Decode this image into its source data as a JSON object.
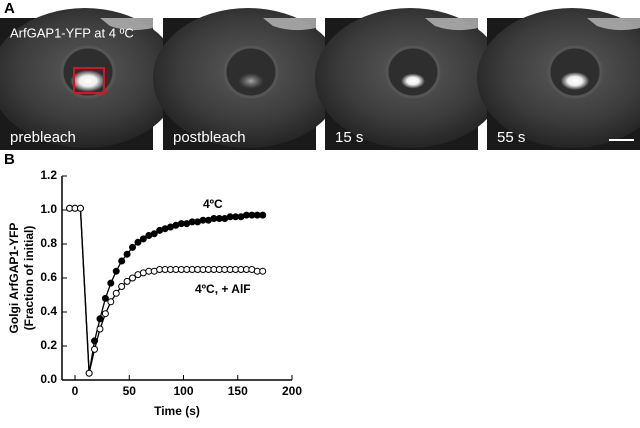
{
  "panel_a": {
    "label": "A",
    "title": "ArfGAP1-YFP at 4 ºC",
    "captions": [
      "prebleach",
      "postbleach",
      "15 s",
      "55 s"
    ]
  },
  "chart_data": {
    "type": "line",
    "panel_label": "B",
    "x_label": "Time (s)",
    "y_label": [
      "Golgi ArfGAP1-YFP",
      "(Fraction of initial)"
    ],
    "x": [
      -5,
      0,
      5,
      13,
      18,
      23,
      28,
      33,
      38,
      43,
      48,
      53,
      58,
      63,
      68,
      73,
      78,
      83,
      88,
      93,
      98,
      103,
      108,
      113,
      118,
      123,
      128,
      133,
      138,
      143,
      148,
      153,
      158,
      163,
      168,
      173
    ],
    "series": [
      {
        "name": "4ºC",
        "color": "#000000",
        "marker_fill": "#000000",
        "values": [
          1.01,
          1.01,
          1.01,
          0.04,
          0.23,
          0.36,
          0.48,
          0.57,
          0.64,
          0.7,
          0.74,
          0.78,
          0.81,
          0.83,
          0.85,
          0.86,
          0.88,
          0.89,
          0.9,
          0.91,
          0.92,
          0.92,
          0.93,
          0.93,
          0.94,
          0.94,
          0.95,
          0.95,
          0.95,
          0.96,
          0.96,
          0.96,
          0.97,
          0.97,
          0.97,
          0.97
        ]
      },
      {
        "name": "4ºC, + AlF",
        "color": "#000000",
        "marker_fill": "#ffffff",
        "values": [
          1.01,
          1.01,
          1.01,
          0.04,
          0.18,
          0.3,
          0.39,
          0.46,
          0.51,
          0.55,
          0.58,
          0.6,
          0.62,
          0.63,
          0.64,
          0.64,
          0.65,
          0.65,
          0.65,
          0.65,
          0.65,
          0.65,
          0.65,
          0.65,
          0.65,
          0.65,
          0.65,
          0.65,
          0.65,
          0.65,
          0.65,
          0.65,
          0.65,
          0.65,
          0.64,
          0.64
        ]
      }
    ],
    "xlim": [
      -12,
      200
    ],
    "xticks": [
      0,
      50,
      100,
      150,
      200
    ],
    "ylim": [
      0,
      1.2
    ],
    "yticks": [
      {
        "value": 0,
        "label": "0.0"
      },
      {
        "value": 0.2,
        "label": "0.2"
      },
      {
        "value": 0.4,
        "label": "0.4"
      },
      {
        "value": 0.6,
        "label": "0.6"
      },
      {
        "value": 0.8,
        "label": "0.8"
      },
      {
        "value": 1,
        "label": "1.0"
      },
      {
        "value": 1.2,
        "label": "1.2"
      }
    ]
  }
}
